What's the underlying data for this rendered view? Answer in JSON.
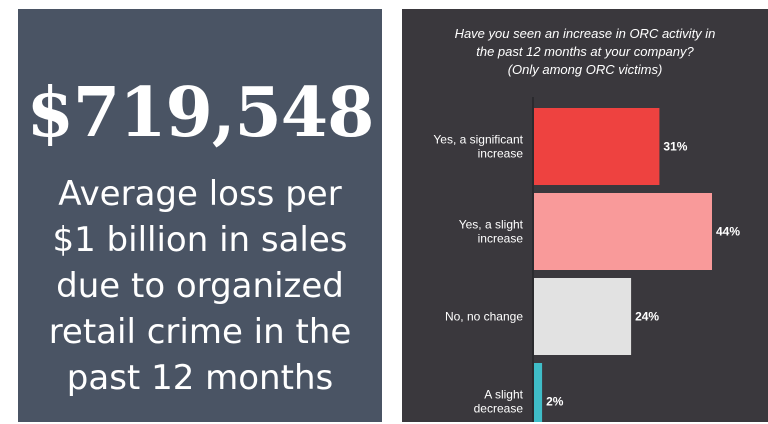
{
  "stat": {
    "value": "$719,548",
    "caption_lines": [
      "Average loss per",
      "$1 billion in sales",
      "due to organized",
      "retail crime in the",
      "past 12 months"
    ]
  },
  "chart_data": {
    "type": "bar",
    "orientation": "horizontal",
    "title_lines": [
      "Have you seen an increase in ORC activity in",
      "the past 12 months at your company?",
      "(Only among ORC victims)"
    ],
    "categories": [
      [
        "Yes, a significant",
        "increase"
      ],
      [
        "Yes, a slight",
        "increase"
      ],
      [
        "No, no change"
      ],
      [
        "A slight",
        "decrease"
      ]
    ],
    "values": [
      31,
      44,
      24,
      2
    ],
    "value_labels": [
      "31%",
      "44%",
      "24%",
      "2%"
    ],
    "colors": [
      "#ee4240",
      "#f99a9a",
      "#e2e2e2",
      "#3fbdc8"
    ],
    "xlim": [
      0,
      44
    ]
  },
  "colors": {
    "left_panel_bg": "#4a5464",
    "right_panel_bg": "#3a383d",
    "axis": "#2a2a2e"
  }
}
